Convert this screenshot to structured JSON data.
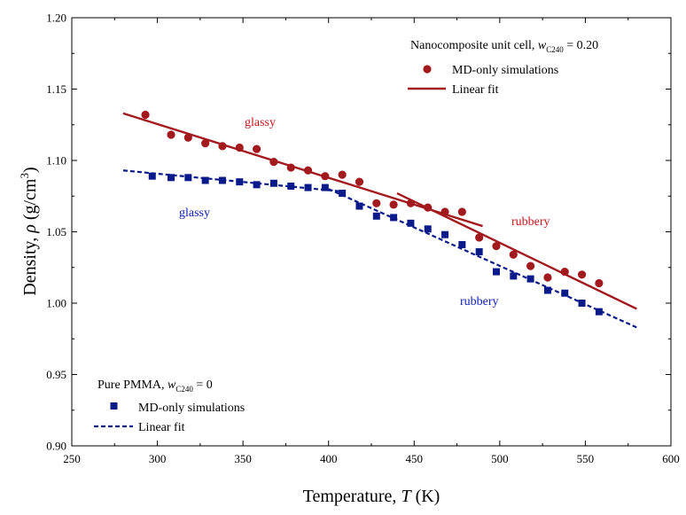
{
  "chart_data": {
    "type": "scatter",
    "title": "",
    "xlabel": "Temperature, T (K)",
    "ylabel": "Density, ρ (g/cm3)",
    "xlim": [
      250,
      600
    ],
    "ylim": [
      0.9,
      1.2
    ],
    "x_ticks": [
      "250",
      "300",
      "350",
      "400",
      "450",
      "500",
      "550",
      "600"
    ],
    "y_ticks": [
      "0.90",
      "0.95",
      "1.00",
      "1.05",
      "1.10",
      "1.15",
      "1.20"
    ],
    "grid": false,
    "legends": [
      {
        "title_main": "Nanocomposite unit cell, ",
        "title_var": "w",
        "title_sub": "C240",
        "title_value": " = 0.20",
        "position": "top-right",
        "entries": [
          "MD-only simulations",
          "Linear fit"
        ]
      },
      {
        "title_main": "Pure PMMA, ",
        "title_var": "w",
        "title_sub": "C240",
        "title_value": " = 0",
        "position": "bottom-left",
        "entries": [
          "MD-only simulations",
          "Linear fit"
        ]
      }
    ],
    "annotations": {
      "red_glassy": "glassy",
      "red_rubbery": "rubbery",
      "blue_glassy": "glassy",
      "blue_rubbery": "rubbery"
    },
    "series": [
      {
        "name": "Nanocomposite MD-only simulations",
        "marker": "circle",
        "color": "#a31a1e",
        "points": [
          [
            293,
            1.132
          ],
          [
            308,
            1.118
          ],
          [
            318,
            1.116
          ],
          [
            328,
            1.112
          ],
          [
            338,
            1.11
          ],
          [
            348,
            1.109
          ],
          [
            358,
            1.108
          ],
          [
            368,
            1.099
          ],
          [
            378,
            1.095
          ],
          [
            388,
            1.093
          ],
          [
            398,
            1.089
          ],
          [
            408,
            1.09
          ],
          [
            418,
            1.085
          ],
          [
            428,
            1.07
          ],
          [
            438,
            1.069
          ],
          [
            448,
            1.07
          ],
          [
            458,
            1.067
          ],
          [
            468,
            1.064
          ],
          [
            478,
            1.064
          ],
          [
            488,
            1.046
          ],
          [
            498,
            1.04
          ],
          [
            508,
            1.034
          ],
          [
            518,
            1.026
          ],
          [
            528,
            1.018
          ],
          [
            538,
            1.022
          ],
          [
            548,
            1.02
          ],
          [
            558,
            1.014
          ]
        ]
      },
      {
        "name": "Pure PMMA MD-only simulations",
        "marker": "square",
        "color": "#0a1a8a",
        "points": [
          [
            297,
            1.089
          ],
          [
            308,
            1.088
          ],
          [
            318,
            1.088
          ],
          [
            328,
            1.086
          ],
          [
            338,
            1.086
          ],
          [
            348,
            1.085
          ],
          [
            358,
            1.083
          ],
          [
            368,
            1.084
          ],
          [
            378,
            1.082
          ],
          [
            388,
            1.081
          ],
          [
            398,
            1.081
          ],
          [
            408,
            1.077
          ],
          [
            418,
            1.068
          ],
          [
            428,
            1.061
          ],
          [
            438,
            1.06
          ],
          [
            448,
            1.056
          ],
          [
            458,
            1.052
          ],
          [
            468,
            1.048
          ],
          [
            478,
            1.041
          ],
          [
            488,
            1.036
          ],
          [
            498,
            1.022
          ],
          [
            508,
            1.019
          ],
          [
            518,
            1.017
          ],
          [
            528,
            1.009
          ],
          [
            538,
            1.007
          ],
          [
            548,
            1.0
          ],
          [
            558,
            0.994
          ]
        ]
      }
    ],
    "fits": [
      {
        "name": "Nanocomposite linear fit (glassy)",
        "color": "#a31a1e",
        "dashed": false,
        "from": [
          280,
          1.133
        ],
        "to": [
          490,
          1.054
        ]
      },
      {
        "name": "Nanocomposite linear fit (rubbery)",
        "color": "#a31a1e",
        "dashed": false,
        "from": [
          440,
          1.077
        ],
        "to": [
          580,
          0.996
        ]
      },
      {
        "name": "Pure PMMA linear fit (glassy)",
        "color": "#0a1a8a",
        "dashed": true,
        "from": [
          280,
          1.093
        ],
        "to": [
          410,
          1.078
        ]
      },
      {
        "name": "Pure PMMA linear fit (rubbery)",
        "color": "#0a1a8a",
        "dashed": true,
        "from": [
          400,
          1.08
        ],
        "to": [
          580,
          0.983
        ]
      }
    ]
  }
}
